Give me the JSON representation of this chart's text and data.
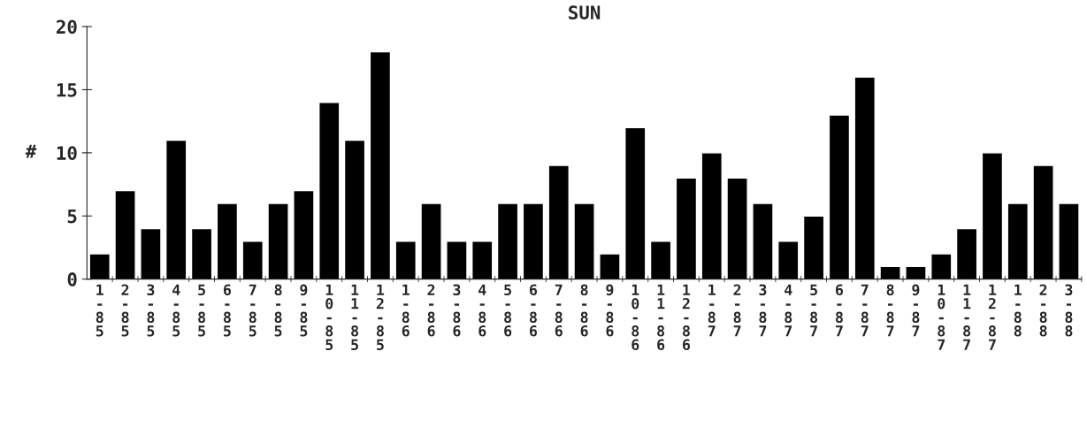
{
  "chart_data": {
    "type": "bar",
    "title": "SUN",
    "ylabel": "#",
    "categories": [
      "1-85",
      "2-85",
      "3-85",
      "4-85",
      "5-85",
      "6-85",
      "7-85",
      "8-85",
      "9-85",
      "10-85",
      "11-85",
      "12-85",
      "1-86",
      "2-86",
      "3-86",
      "4-86",
      "5-86",
      "6-86",
      "7-86",
      "8-86",
      "9-86",
      "10-86",
      "11-86",
      "12-86",
      "1-87",
      "2-87",
      "3-87",
      "4-87",
      "5-87",
      "6-87",
      "7-87",
      "8-87",
      "9-87",
      "10-87",
      "11-87",
      "12-87",
      "1-88",
      "2-88",
      "3-88"
    ],
    "values": [
      2,
      7,
      4,
      11,
      4,
      6,
      3,
      6,
      7,
      14,
      11,
      18,
      3,
      6,
      3,
      3,
      6,
      6,
      9,
      6,
      2,
      12,
      3,
      8,
      10,
      8,
      6,
      3,
      5,
      13,
      16,
      1,
      1,
      2,
      4,
      10,
      6,
      9,
      6
    ],
    "color": "#000000",
    "ylim": [
      0,
      20
    ],
    "yticks": [
      0,
      5,
      10,
      15,
      20
    ],
    "grid": false,
    "legend": false
  }
}
